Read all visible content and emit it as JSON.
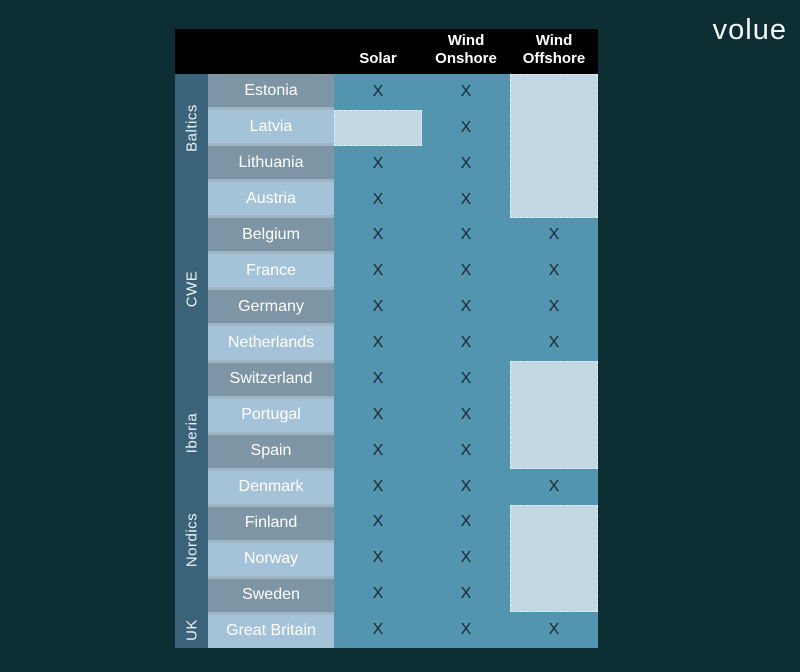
{
  "logo": {
    "text": "volue"
  },
  "mark": "X",
  "chart_data": {
    "type": "table",
    "columns": [
      "Solar",
      "Wind Onshore",
      "Wind Offshore"
    ],
    "regions": [
      {
        "label": "Baltics",
        "countries": [
          "Estonia",
          "Latvia",
          "Lithuania"
        ]
      },
      {
        "label": "CWE",
        "countries": [
          "Austria",
          "Belgium",
          "France",
          "Germany",
          "Netherlands",
          "Switzerland"
        ]
      },
      {
        "label": "Iberia",
        "countries": [
          "Portugal",
          "Spain"
        ]
      },
      {
        "label": "Nordics",
        "countries": [
          "Denmark",
          "Finland",
          "Norway",
          "Sweden"
        ]
      },
      {
        "label": "UK",
        "countries": [
          "Great Britain"
        ]
      }
    ],
    "rows": [
      {
        "country": "Estonia",
        "solar": true,
        "wind_onshore": true,
        "wind_offshore": false
      },
      {
        "country": "Latvia",
        "solar": false,
        "wind_onshore": true,
        "wind_offshore": false
      },
      {
        "country": "Lithuania",
        "solar": true,
        "wind_onshore": true,
        "wind_offshore": false
      },
      {
        "country": "Austria",
        "solar": true,
        "wind_onshore": true,
        "wind_offshore": false
      },
      {
        "country": "Belgium",
        "solar": true,
        "wind_onshore": true,
        "wind_offshore": true
      },
      {
        "country": "France",
        "solar": true,
        "wind_onshore": true,
        "wind_offshore": true
      },
      {
        "country": "Germany",
        "solar": true,
        "wind_onshore": true,
        "wind_offshore": true
      },
      {
        "country": "Netherlands",
        "solar": true,
        "wind_onshore": true,
        "wind_offshore": true
      },
      {
        "country": "Switzerland",
        "solar": true,
        "wind_onshore": true,
        "wind_offshore": false
      },
      {
        "country": "Portugal",
        "solar": true,
        "wind_onshore": true,
        "wind_offshore": false
      },
      {
        "country": "Spain",
        "solar": true,
        "wind_onshore": true,
        "wind_offshore": false
      },
      {
        "country": "Denmark",
        "solar": true,
        "wind_onshore": true,
        "wind_offshore": true
      },
      {
        "country": "Finland",
        "solar": true,
        "wind_onshore": true,
        "wind_offshore": false
      },
      {
        "country": "Norway",
        "solar": true,
        "wind_onshore": true,
        "wind_offshore": false
      },
      {
        "country": "Sweden",
        "solar": true,
        "wind_onshore": true,
        "wind_offshore": false
      },
      {
        "country": "Great Britain",
        "solar": true,
        "wind_onshore": true,
        "wind_offshore": true
      }
    ],
    "na_blocks": [
      {
        "column": 1,
        "row_start": 2,
        "row_span": 1
      },
      {
        "column": 3,
        "row_start": 1,
        "row_span": 4
      },
      {
        "column": 3,
        "row_start": 9,
        "row_span": 3
      },
      {
        "column": 3,
        "row_start": 13,
        "row_span": 3
      }
    ]
  },
  "colors": {
    "page_bg": "#0c2d31",
    "header_bg": "#000000",
    "region_col_bg": "#3a6278",
    "row_dark": "#7d95a4",
    "row_light": "#a4c3d8",
    "data_bg": "#5394af",
    "na_block": "#c2d8e3",
    "mark_color": "#1b2a33",
    "gap_line": "#9cb6c3",
    "text_light": "#f2f7f9"
  }
}
